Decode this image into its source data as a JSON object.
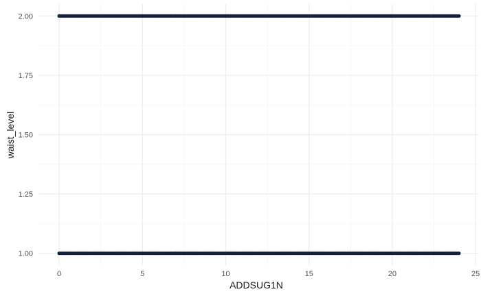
{
  "chart_data": {
    "type": "scatter",
    "xlabel": "ADDSUG1N",
    "ylabel": "waist_level",
    "xlim": [
      -1.2,
      25.2
    ],
    "ylim": [
      0.95,
      2.05
    ],
    "x_ticks": [
      0,
      5,
      10,
      15,
      20,
      25
    ],
    "x_tick_labels": [
      "0",
      "5",
      "10",
      "15",
      "20",
      "25"
    ],
    "y_ticks": [
      1.0,
      1.25,
      1.5,
      1.75,
      2.0
    ],
    "y_tick_labels": [
      "1.00",
      "1.25",
      "1.50",
      "1.75",
      "2.00"
    ],
    "grid": true,
    "point_color": "#14213d",
    "series": [
      {
        "x_range": [
          0,
          24
        ],
        "x_step": 0.1,
        "y_levels": [
          1,
          2
        ]
      }
    ]
  }
}
